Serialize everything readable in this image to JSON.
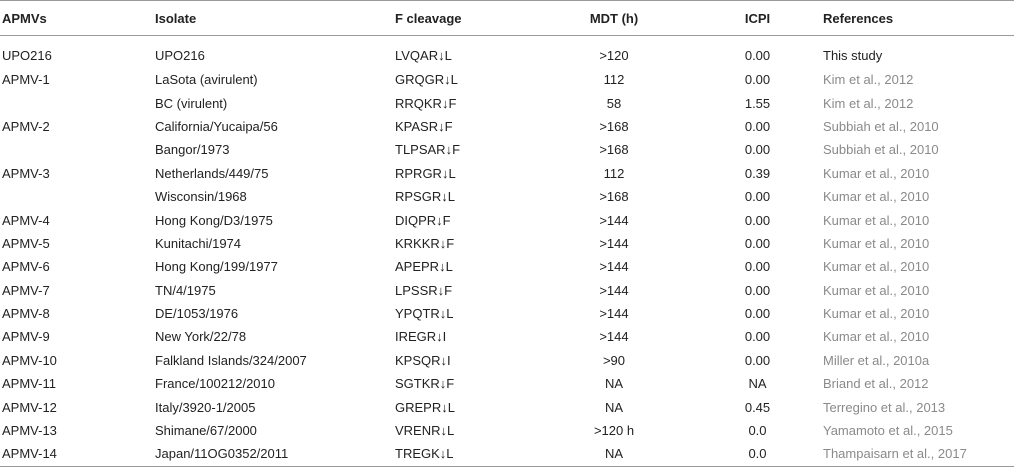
{
  "table": {
    "headers": [
      "APMVs",
      "Isolate",
      "F cleavage",
      "MDT (h)",
      "ICPI",
      "References"
    ],
    "rows": [
      {
        "apmv": "UPO216",
        "isolate": "UPO216",
        "cleavage": "LVQAR↓L",
        "mdt": ">120",
        "icpi": "0.00",
        "ref": "This study"
      },
      {
        "apmv": "APMV-1",
        "isolate": "LaSota (avirulent)",
        "cleavage": "GRQGR↓L",
        "mdt": "112",
        "icpi": "0.00",
        "ref": "Kim et al., 2012"
      },
      {
        "apmv": "",
        "isolate": "BC (virulent)",
        "cleavage": "RRQKR↓F",
        "mdt": "58",
        "icpi": "1.55",
        "ref": "Kim et al., 2012"
      },
      {
        "apmv": "APMV-2",
        "isolate": "California/Yucaipa/56",
        "cleavage": "KPASR↓F",
        "mdt": ">168",
        "icpi": "0.00",
        "ref": "Subbiah et al., 2010"
      },
      {
        "apmv": "",
        "isolate": "Bangor/1973",
        "cleavage": "TLPSAR↓F",
        "mdt": ">168",
        "icpi": "0.00",
        "ref": "Subbiah et al., 2010"
      },
      {
        "apmv": "APMV-3",
        "isolate": "Netherlands/449/75",
        "cleavage": "RPRGR↓L",
        "mdt": "112",
        "icpi": "0.39",
        "ref": "Kumar et al., 2010"
      },
      {
        "apmv": "",
        "isolate": "Wisconsin/1968",
        "cleavage": "RPSGR↓L",
        "mdt": ">168",
        "icpi": "0.00",
        "ref": "Kumar et al., 2010"
      },
      {
        "apmv": "APMV-4",
        "isolate": "Hong Kong/D3/1975",
        "cleavage": "DIQPR↓F",
        "mdt": ">144",
        "icpi": "0.00",
        "ref": "Kumar et al., 2010"
      },
      {
        "apmv": "APMV-5",
        "isolate": "Kunitachi/1974",
        "cleavage": "KRKKR↓F",
        "mdt": ">144",
        "icpi": "0.00",
        "ref": "Kumar et al., 2010"
      },
      {
        "apmv": "APMV-6",
        "isolate": "Hong Kong/199/1977",
        "cleavage": "APEPR↓L",
        "mdt": ">144",
        "icpi": "0.00",
        "ref": "Kumar et al., 2010"
      },
      {
        "apmv": "APMV-7",
        "isolate": "TN/4/1975",
        "cleavage": "LPSSR↓F",
        "mdt": ">144",
        "icpi": "0.00",
        "ref": "Kumar et al., 2010"
      },
      {
        "apmv": "APMV-8",
        "isolate": "DE/1053/1976",
        "cleavage": "YPQTR↓L",
        "mdt": ">144",
        "icpi": "0.00",
        "ref": "Kumar et al., 2010"
      },
      {
        "apmv": "APMV-9",
        "isolate": "New York/22/78",
        "cleavage": "IREGR↓I",
        "mdt": ">144",
        "icpi": "0.00",
        "ref": "Kumar et al., 2010"
      },
      {
        "apmv": "APMV-10",
        "isolate": "Falkland Islands/324/2007",
        "cleavage": "KPSQR↓I",
        "mdt": ">90",
        "icpi": "0.00",
        "ref": "Miller et al., 2010a"
      },
      {
        "apmv": "APMV-11",
        "isolate": "France/100212/2010",
        "cleavage": "SGTKR↓F",
        "mdt": "NA",
        "icpi": "NA",
        "ref": "Briand et al., 2012"
      },
      {
        "apmv": "APMV-12",
        "isolate": "Italy/3920-1/2005",
        "cleavage": "GREPR↓L",
        "mdt": "NA",
        "icpi": "0.45",
        "ref": "Terregino et al., 2013"
      },
      {
        "apmv": "APMV-13",
        "isolate": "Shimane/67/2000",
        "cleavage": "VRENR↓L",
        "mdt": ">120 h",
        "icpi": "0.0",
        "ref": "Yamamoto et al., 2015"
      },
      {
        "apmv": "APMV-14",
        "isolate": "Japan/11OG0352/2011",
        "cleavage": "TREGK↓L",
        "mdt": "NA",
        "icpi": "0.0",
        "ref": "Thampaisarn et al., 2017"
      }
    ]
  }
}
